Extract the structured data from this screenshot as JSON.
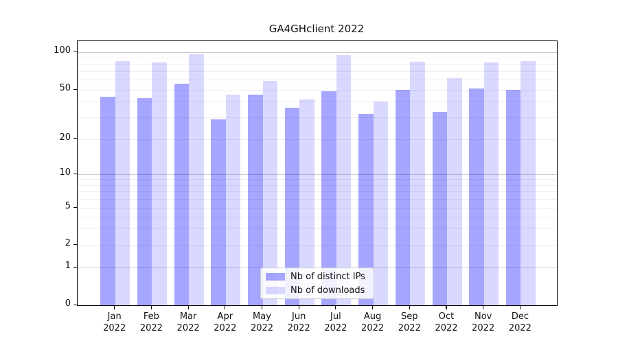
{
  "title": "GA4GHclient 2022",
  "chart_data": {
    "type": "bar",
    "title": "GA4GHclient 2022",
    "xlabel": "",
    "ylabel": "",
    "yscale": "symlog",
    "ylim": [
      0,
      120
    ],
    "grid": true,
    "legend_position": "lower center",
    "categories": [
      "Jan",
      "Feb",
      "Mar",
      "Apr",
      "May",
      "Jun",
      "Jul",
      "Aug",
      "Sep",
      "Oct",
      "Nov",
      "Dec"
    ],
    "category_subline": "2022",
    "yticks": [
      0,
      1,
      2,
      5,
      10,
      20,
      50,
      100
    ],
    "minor_gridline_values": [
      2,
      3,
      4,
      5,
      6,
      7,
      8,
      9,
      20,
      30,
      40,
      50,
      60,
      70,
      80,
      90
    ],
    "major_gridline_values": [
      1,
      10,
      100
    ],
    "series": [
      {
        "name": "Nb of distinct IPs",
        "color": "rgba(0,0,255,0.35)",
        "values": [
          44,
          43,
          56,
          29,
          46,
          36,
          49,
          32,
          50,
          33,
          51,
          50
        ]
      },
      {
        "name": "Nb of downloads",
        "color": "rgba(0,0,255,0.15)",
        "values": [
          85,
          82,
          96,
          46,
          59,
          42,
          94,
          40,
          83,
          62,
          82,
          84
        ]
      }
    ]
  },
  "colors": {
    "spine": "#000000",
    "grid_major": "#cccccc",
    "grid_minor": "#efefef",
    "text": "#111111",
    "background": "#ffffff"
  }
}
